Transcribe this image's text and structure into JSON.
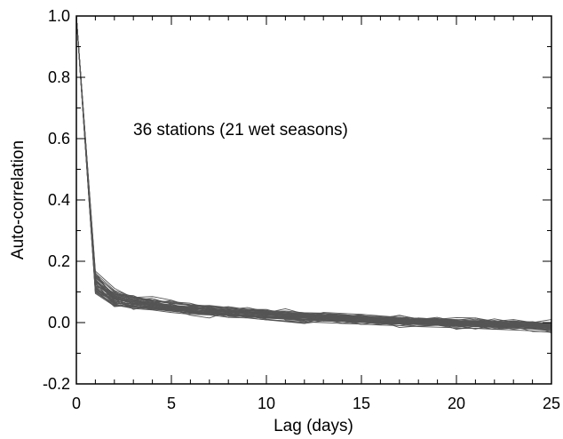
{
  "chart_data": {
    "type": "line",
    "title": "",
    "xlabel": "Lag (days)",
    "ylabel": "Auto-correlation",
    "annotation": "36 stations (21 wet seasons)",
    "xlim": [
      0,
      25
    ],
    "ylim": [
      -0.2,
      1.0
    ],
    "x_ticks": [
      0,
      5,
      10,
      15,
      20,
      25
    ],
    "y_ticks": [
      1.0,
      0.8,
      0.6,
      0.4,
      0.2,
      0.0,
      -0.2
    ],
    "x_tick_labels": [
      "0",
      "5",
      "10",
      "15",
      "20",
      "25"
    ],
    "y_tick_labels": [
      "1.0",
      "0.8",
      "0.6",
      "0.4",
      "0.2",
      "0.0",
      "-0.2"
    ],
    "grid": false,
    "legend": "none",
    "line_color": "#555555",
    "x": [
      0,
      1,
      2,
      3,
      4,
      5,
      6,
      7,
      8,
      9,
      10,
      11,
      12,
      13,
      14,
      15,
      16,
      17,
      18,
      19,
      20,
      21,
      22,
      23,
      24,
      25
    ],
    "series": [
      {
        "values": [
          1.0,
          0.134,
          0.078,
          0.066,
          0.056,
          0.045,
          0.04,
          0.033,
          0.034,
          0.028,
          0.025,
          0.026,
          0.018,
          0.016,
          0.012,
          0.01,
          0.009,
          0.007,
          0.004,
          0.002,
          0.0,
          -0.002,
          -0.004,
          -0.006,
          -0.008,
          -0.012
        ]
      },
      {
        "values": [
          1.0,
          0.153,
          0.102,
          0.074,
          0.079,
          0.06,
          0.045,
          0.052,
          0.031,
          0.042,
          0.039,
          0.025,
          0.016,
          0.033,
          0.03,
          0.027,
          0.022,
          0.017,
          0.007,
          0.009,
          0.008,
          0.015,
          0.004,
          0.01,
          0.0,
          0.01
        ]
      },
      {
        "values": [
          1.0,
          0.107,
          0.052,
          0.057,
          0.066,
          0.044,
          0.024,
          0.015,
          0.036,
          0.029,
          0.032,
          0.03,
          0.027,
          0.02,
          0.011,
          -0.006,
          -0.006,
          0.007,
          0.015,
          0.001,
          -0.022,
          -0.012,
          -0.01,
          -0.007,
          -0.005,
          -0.034
        ]
      },
      {
        "values": [
          1.0,
          0.117,
          0.06,
          0.051,
          0.051,
          0.049,
          0.047,
          0.043,
          0.021,
          0.021,
          0.036,
          0.009,
          0.007,
          0.03,
          0.02,
          0.003,
          0.01,
          0.011,
          0.0,
          -0.004,
          -0.01,
          -0.021,
          -0.007,
          -0.008,
          -0.018,
          -0.006
        ]
      },
      {
        "values": [
          1.0,
          0.131,
          0.093,
          0.076,
          0.064,
          0.072,
          0.054,
          0.056,
          0.049,
          0.043,
          0.043,
          0.027,
          0.019,
          0.022,
          0.018,
          0.016,
          0.016,
          0.003,
          0.015,
          0.011,
          0.016,
          0.015,
          0.0,
          0.006,
          -0.003,
          -0.002
        ]
      },
      {
        "values": [
          1.0,
          0.163,
          0.078,
          0.043,
          0.057,
          0.045,
          0.033,
          0.029,
          0.028,
          0.016,
          0.009,
          0.003,
          -0.003,
          0.006,
          0.004,
          -0.006,
          0.004,
          -0.016,
          -0.011,
          -0.008,
          -0.02,
          -0.018,
          -0.021,
          -0.012,
          -0.029,
          -0.03
        ]
      },
      {
        "values": [
          1.0,
          0.121,
          0.093,
          0.088,
          0.062,
          0.046,
          0.054,
          0.045,
          0.044,
          0.037,
          0.02,
          0.02,
          0.02,
          0.03,
          0.02,
          0.01,
          0.016,
          0.005,
          0.014,
          0.005,
          0.0,
          -0.001,
          -0.009,
          0.003,
          0.001,
          -0.02
        ]
      },
      {
        "values": [
          1.0,
          0.151,
          0.09,
          0.076,
          0.056,
          0.059,
          0.033,
          0.041,
          0.036,
          0.035,
          0.034,
          0.029,
          0.031,
          0.005,
          0.02,
          0.026,
          0.0,
          0.004,
          0.01,
          -0.002,
          -0.003,
          -0.001,
          -0.018,
          -0.006,
          -0.005,
          -0.009
        ]
      },
      {
        "values": [
          1.0,
          0.095,
          0.054,
          0.055,
          0.042,
          0.044,
          0.034,
          0.034,
          0.017,
          0.022,
          0.011,
          0.005,
          -0.001,
          0.013,
          0.004,
          0.004,
          -0.002,
          -0.01,
          0.0,
          -0.005,
          -0.004,
          -0.013,
          -0.009,
          -0.022,
          -0.013,
          -0.014
        ]
      },
      {
        "values": [
          1.0,
          0.146,
          0.092,
          0.082,
          0.085,
          0.073,
          0.054,
          0.052,
          0.043,
          0.049,
          0.036,
          0.038,
          0.032,
          0.031,
          0.022,
          0.024,
          0.015,
          0.023,
          0.012,
          0.013,
          0.007,
          0.0,
          0.012,
          0.001,
          -0.002,
          -0.003
        ]
      },
      {
        "values": [
          1.0,
          0.13,
          0.06,
          0.082,
          0.071,
          0.052,
          0.043,
          0.038,
          0.025,
          0.037,
          0.027,
          0.022,
          0.032,
          0.013,
          0.017,
          0.015,
          0.0,
          -0.005,
          -0.003,
          0.001,
          -0.002,
          -0.004,
          -0.01,
          -0.003,
          -0.012,
          -0.016
        ]
      },
      {
        "values": [
          1.0,
          0.102,
          0.069,
          0.061,
          0.05,
          0.043,
          0.045,
          0.035,
          0.041,
          0.03,
          0.026,
          0.021,
          0.015,
          0.012,
          0.02,
          0.013,
          0.011,
          0.007,
          0.003,
          0.006,
          0.0,
          -0.001,
          -0.004,
          -0.006,
          -0.008,
          -0.011
        ]
      },
      {
        "values": [
          1.0,
          0.168,
          0.112,
          0.08,
          0.069,
          0.068,
          0.063,
          0.047,
          0.052,
          0.043,
          0.032,
          0.045,
          0.028,
          0.03,
          0.027,
          0.019,
          0.013,
          0.024,
          0.01,
          0.017,
          0.004,
          0.011,
          0.001,
          0.005,
          0.002,
          -0.004
        ]
      },
      {
        "values": [
          1.0,
          0.139,
          0.072,
          0.058,
          0.053,
          0.044,
          0.04,
          0.028,
          0.03,
          0.02,
          0.014,
          0.013,
          0.004,
          0.01,
          -0.002,
          0.003,
          -0.005,
          -0.004,
          -0.012,
          -0.009,
          -0.014,
          -0.011,
          -0.022,
          -0.018,
          -0.021,
          -0.027
        ]
      },
      {
        "values": [
          1.0,
          0.11,
          0.081,
          0.063,
          0.055,
          0.06,
          0.042,
          0.048,
          0.033,
          0.04,
          0.034,
          0.025,
          0.031,
          0.02,
          0.025,
          0.018,
          0.014,
          0.017,
          0.008,
          0.012,
          0.006,
          0.004,
          0.007,
          -0.002,
          0.003,
          -0.006
        ]
      },
      {
        "values": [
          1.0,
          0.125,
          0.087,
          0.071,
          0.063,
          0.052,
          0.049,
          0.04,
          0.038,
          0.033,
          0.03,
          0.024,
          0.022,
          0.018,
          0.015,
          0.011,
          0.01,
          0.006,
          0.004,
          0.001,
          -0.001,
          -0.003,
          -0.005,
          -0.007,
          -0.009,
          -0.013
        ]
      },
      {
        "values": [
          1.0,
          0.143,
          0.066,
          0.052,
          0.047,
          0.038,
          0.03,
          0.037,
          0.022,
          0.026,
          0.018,
          0.017,
          0.009,
          0.015,
          0.006,
          0.008,
          0.002,
          0.001,
          -0.004,
          0.002,
          -0.008,
          -0.006,
          -0.013,
          -0.01,
          -0.016,
          -0.019
        ]
      },
      {
        "values": [
          1.0,
          0.118,
          0.098,
          0.085,
          0.072,
          0.064,
          0.058,
          0.051,
          0.046,
          0.039,
          0.037,
          0.033,
          0.027,
          0.026,
          0.021,
          0.02,
          0.017,
          0.013,
          0.011,
          0.008,
          0.007,
          0.004,
          0.002,
          0.0,
          -0.001,
          -0.004
        ]
      },
      {
        "values": [
          1.0,
          0.098,
          0.058,
          0.046,
          0.041,
          0.033,
          0.027,
          0.025,
          0.017,
          0.015,
          0.009,
          0.006,
          0.002,
          0.0,
          -0.003,
          -0.005,
          -0.008,
          -0.01,
          -0.013,
          -0.015,
          -0.017,
          -0.019,
          -0.022,
          -0.024,
          -0.027,
          -0.032
        ]
      },
      {
        "values": [
          1.0,
          0.157,
          0.084,
          0.068,
          0.06,
          0.051,
          0.047,
          0.044,
          0.039,
          0.034,
          0.031,
          0.028,
          0.025,
          0.021,
          0.019,
          0.016,
          0.013,
          0.011,
          0.008,
          0.006,
          0.003,
          0.001,
          -0.001,
          -0.003,
          -0.006,
          -0.008
        ]
      },
      {
        "values": [
          1.0,
          0.128,
          0.075,
          0.064,
          0.059,
          0.048,
          0.041,
          0.039,
          0.032,
          0.03,
          0.024,
          0.023,
          0.019,
          0.016,
          0.014,
          0.011,
          0.009,
          0.005,
          0.004,
          0.0,
          -0.001,
          -0.004,
          -0.006,
          -0.009,
          -0.01,
          -0.015
        ]
      },
      {
        "values": [
          1.0,
          0.112,
          0.063,
          0.06,
          0.048,
          0.041,
          0.036,
          0.031,
          0.027,
          0.024,
          0.019,
          0.015,
          0.014,
          0.009,
          0.008,
          0.004,
          0.002,
          0.0,
          -0.003,
          -0.004,
          -0.007,
          -0.009,
          -0.011,
          -0.013,
          -0.015,
          -0.02
        ]
      },
      {
        "values": [
          1.0,
          0.136,
          0.096,
          0.079,
          0.067,
          0.057,
          0.052,
          0.046,
          0.041,
          0.036,
          0.033,
          0.029,
          0.025,
          0.022,
          0.019,
          0.017,
          0.014,
          0.012,
          0.01,
          0.007,
          0.005,
          0.003,
          0.001,
          -0.001,
          -0.003,
          -0.006
        ]
      },
      {
        "values": [
          1.0,
          0.104,
          0.056,
          0.049,
          0.044,
          0.037,
          0.031,
          0.026,
          0.023,
          0.018,
          0.015,
          0.011,
          0.008,
          0.005,
          0.003,
          0.0,
          -0.002,
          -0.004,
          -0.007,
          -0.009,
          -0.011,
          -0.013,
          -0.016,
          -0.018,
          -0.02,
          -0.025
        ]
      },
      {
        "values": [
          1.0,
          0.161,
          0.105,
          0.084,
          0.074,
          0.066,
          0.059,
          0.054,
          0.049,
          0.044,
          0.04,
          0.035,
          0.032,
          0.029,
          0.026,
          0.022,
          0.02,
          0.017,
          0.014,
          0.012,
          0.01,
          0.007,
          0.005,
          0.003,
          0.001,
          -0.002
        ]
      },
      {
        "values": [
          1.0,
          0.12,
          0.07,
          0.058,
          0.05,
          0.042,
          0.037,
          0.033,
          0.028,
          0.025,
          0.021,
          0.018,
          0.015,
          0.012,
          0.01,
          0.007,
          0.005,
          0.003,
          0.0,
          -0.002,
          -0.004,
          -0.006,
          -0.008,
          -0.01,
          -0.012,
          -0.017
        ]
      },
      {
        "values": [
          1.0,
          0.149,
          0.088,
          0.073,
          0.065,
          0.055,
          0.05,
          0.045,
          0.04,
          0.037,
          0.032,
          0.029,
          0.026,
          0.023,
          0.02,
          0.018,
          0.015,
          0.012,
          0.01,
          0.008,
          0.005,
          0.003,
          0.001,
          -0.001,
          -0.004,
          -0.007
        ]
      },
      {
        "values": [
          1.0,
          0.108,
          0.065,
          0.054,
          0.047,
          0.04,
          0.035,
          0.03,
          0.026,
          0.022,
          0.018,
          0.014,
          0.011,
          0.008,
          0.006,
          0.003,
          0.001,
          -0.002,
          -0.004,
          -0.006,
          -0.009,
          -0.011,
          -0.013,
          -0.015,
          -0.018,
          -0.022
        ]
      },
      {
        "values": [
          1.0,
          0.133,
          0.08,
          0.067,
          0.058,
          0.05,
          0.044,
          0.039,
          0.035,
          0.031,
          0.027,
          0.024,
          0.02,
          0.017,
          0.014,
          0.012,
          0.009,
          0.007,
          0.004,
          0.002,
          0.0,
          -0.002,
          -0.004,
          -0.006,
          -0.009,
          -0.012
        ]
      },
      {
        "values": [
          1.0,
          0.115,
          0.067,
          0.055,
          0.048,
          0.041,
          0.037,
          0.032,
          0.028,
          0.024,
          0.02,
          0.017,
          0.014,
          0.011,
          0.009,
          0.006,
          0.004,
          0.001,
          -0.001,
          -0.003,
          -0.006,
          -0.008,
          -0.01,
          -0.012,
          -0.014,
          -0.019
        ]
      },
      {
        "values": [
          1.0,
          0.141,
          0.085,
          0.072,
          0.063,
          0.054,
          0.049,
          0.043,
          0.039,
          0.034,
          0.03,
          0.027,
          0.023,
          0.02,
          0.017,
          0.015,
          0.012,
          0.009,
          0.007,
          0.005,
          0.002,
          0.0,
          -0.002,
          -0.004,
          -0.007,
          -0.01
        ]
      },
      {
        "values": [
          1.0,
          0.101,
          0.061,
          0.05,
          0.045,
          0.038,
          0.032,
          0.028,
          0.024,
          0.02,
          0.016,
          0.013,
          0.01,
          0.007,
          0.005,
          0.002,
          0.0,
          -0.003,
          -0.005,
          -0.007,
          -0.01,
          -0.012,
          -0.014,
          -0.016,
          -0.019,
          -0.024
        ]
      },
      {
        "values": [
          1.0,
          0.127,
          0.077,
          0.062,
          0.055,
          0.047,
          0.042,
          0.037,
          0.033,
          0.029,
          0.025,
          0.022,
          0.018,
          0.015,
          0.013,
          0.01,
          0.008,
          0.005,
          0.003,
          0.001,
          -0.002,
          -0.004,
          -0.006,
          -0.008,
          -0.011,
          -0.014
        ]
      },
      {
        "values": [
          1.0,
          0.155,
          0.099,
          0.081,
          0.07,
          0.062,
          0.056,
          0.05,
          0.045,
          0.041,
          0.036,
          0.032,
          0.029,
          0.025,
          0.023,
          0.019,
          0.017,
          0.014,
          0.011,
          0.009,
          0.006,
          0.004,
          0.002,
          0.0,
          -0.002,
          -0.005
        ]
      },
      {
        "values": [
          1.0,
          0.113,
          0.071,
          0.059,
          0.052,
          0.044,
          0.039,
          0.034,
          0.03,
          0.026,
          0.022,
          0.019,
          0.016,
          0.013,
          0.011,
          0.008,
          0.006,
          0.003,
          0.001,
          -0.001,
          -0.003,
          -0.005,
          -0.007,
          -0.009,
          -0.012,
          -0.016
        ]
      },
      {
        "values": [
          1.0,
          0.137,
          0.082,
          0.069,
          0.061,
          0.053,
          0.047,
          0.042,
          0.037,
          0.033,
          0.029,
          0.026,
          0.022,
          0.019,
          0.016,
          0.014,
          0.011,
          0.008,
          0.006,
          0.004,
          0.001,
          -0.001,
          -0.003,
          -0.005,
          -0.008,
          -0.011
        ]
      }
    ]
  }
}
